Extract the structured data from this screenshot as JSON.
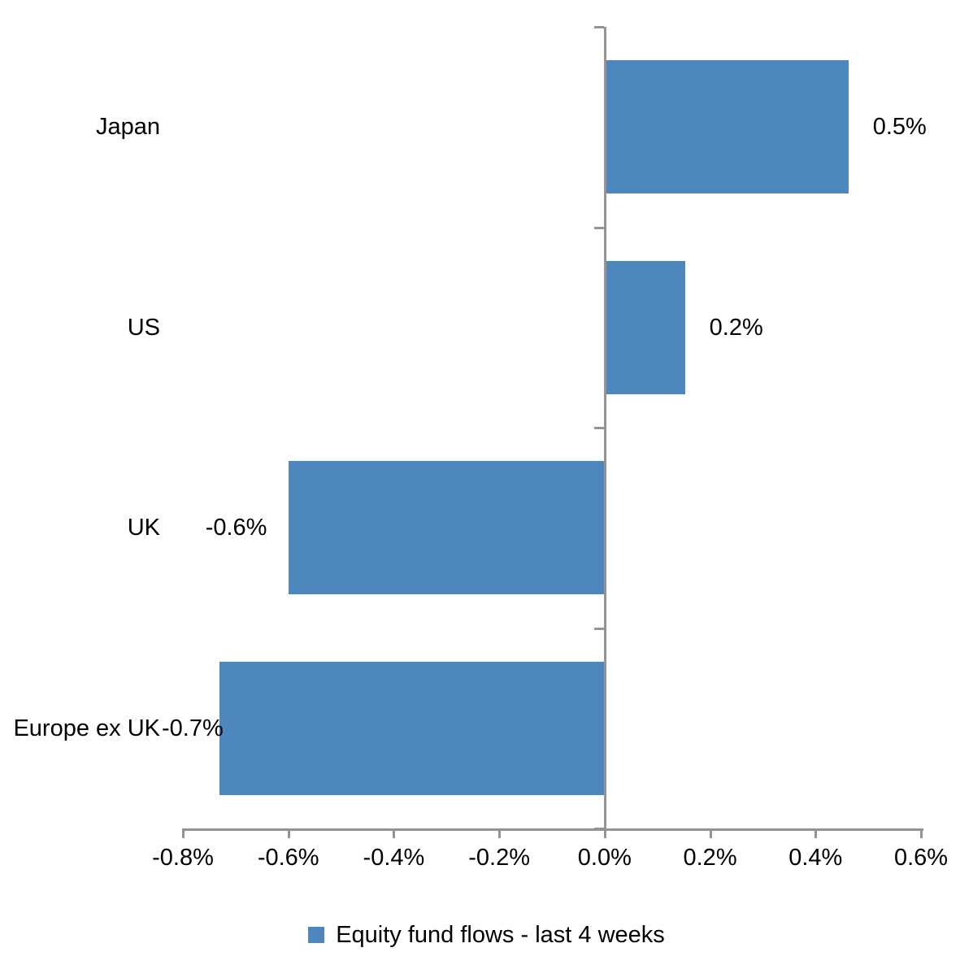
{
  "chart_data": {
    "type": "bar",
    "orientation": "horizontal",
    "title": "",
    "categories": [
      "Japan",
      "US",
      "UK",
      "Europe ex UK"
    ],
    "series": [
      {
        "name": "Equity fund flows - last 4 weeks",
        "values": [
          0.46,
          0.15,
          -0.6,
          -0.73
        ],
        "data_labels": [
          "0.5%",
          "0.2%",
          "-0.6%",
          "-0.7%"
        ]
      }
    ],
    "x_axis": {
      "min": -0.8,
      "max": 0.6,
      "tick_step": 0.2,
      "tick_labels": [
        "-0.8%",
        "-0.6%",
        "-0.4%",
        "-0.2%",
        "0.0%",
        "0.2%",
        "0.4%",
        "0.6%"
      ]
    },
    "y_axis": {
      "label": ""
    },
    "legend": {
      "position": "bottom",
      "entries": [
        "Equity fund flows - last 4 weeks"
      ]
    },
    "colors": {
      "bar": "#4E87BE",
      "axis": "#949494",
      "text": "#000000",
      "background": "#FFFFFF"
    },
    "grid": false,
    "data_label_position": "outside-end"
  }
}
